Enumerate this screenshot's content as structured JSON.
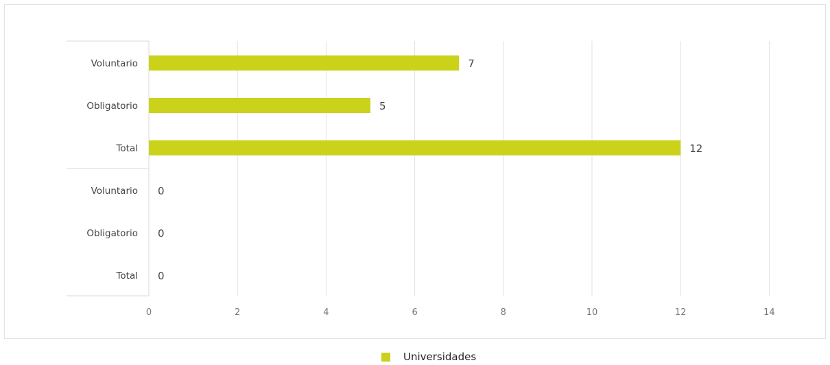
{
  "chart_data": {
    "type": "bar",
    "orientation": "horizontal",
    "categories": [
      "Voluntario",
      "Obligatorio",
      "Total",
      "Voluntario",
      "Obligatorio",
      "Total"
    ],
    "series": [
      {
        "name": "Universidades",
        "values": [
          7,
          5,
          12,
          0,
          0,
          0
        ],
        "color": "#cbd21a"
      }
    ],
    "xlim": [
      0,
      14
    ],
    "x_ticks": [
      "0",
      "2",
      "4",
      "6",
      "8",
      "10",
      "12",
      "14"
    ],
    "grid": "vertical",
    "legend_position": "bottom"
  }
}
